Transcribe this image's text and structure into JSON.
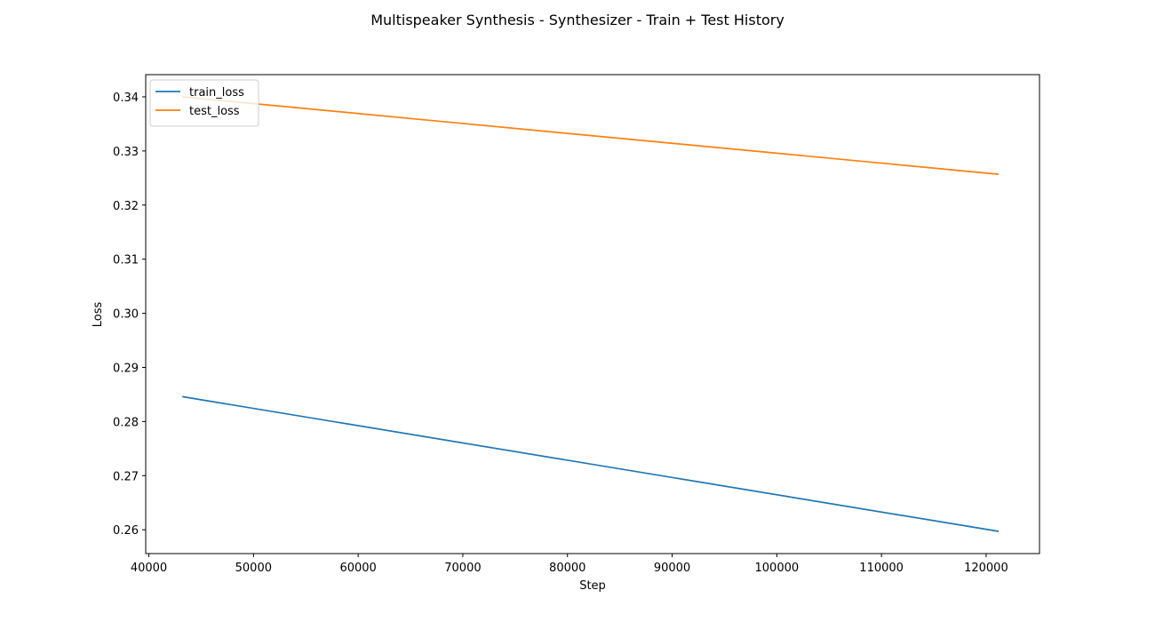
{
  "chart_data": {
    "type": "line",
    "title": "Multispeaker Synthesis - Synthesizer - Train + Test History",
    "xlabel": "Step",
    "ylabel": "Loss",
    "xlim": [
      39700,
      125100
    ],
    "ylim": [
      0.2556,
      0.3441
    ],
    "x_ticks": [
      40000,
      50000,
      60000,
      70000,
      80000,
      90000,
      100000,
      110000,
      120000
    ],
    "y_ticks": [
      0.26,
      0.27,
      0.28,
      0.29,
      0.3,
      0.31,
      0.32,
      0.33,
      0.34
    ],
    "x_tick_labels": [
      "40000",
      "50000",
      "60000",
      "70000",
      "80000",
      "90000",
      "100000",
      "110000",
      "120000"
    ],
    "y_tick_labels": [
      "0.26",
      "0.27",
      "0.28",
      "0.29",
      "0.30",
      "0.31",
      "0.32",
      "0.33",
      "0.34"
    ],
    "grid": false,
    "legend_position": "upper-left",
    "series": [
      {
        "name": "train_loss",
        "color": "#1f77b4",
        "x": [
          43200,
          121200
        ],
        "y": [
          0.2846,
          0.2597
        ]
      },
      {
        "name": "test_loss",
        "color": "#ff7f0e",
        "x": [
          43200,
          121200
        ],
        "y": [
          0.34,
          0.3257
        ]
      }
    ]
  }
}
